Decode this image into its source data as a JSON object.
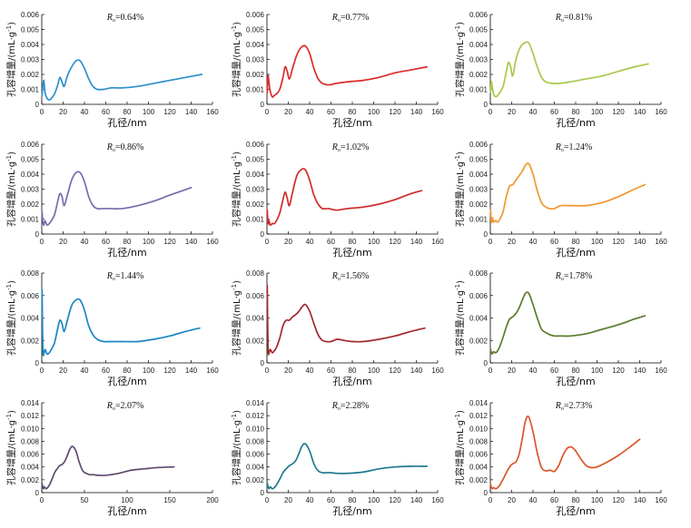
{
  "chart_data": [
    {
      "type": "line",
      "title": "R_o=0.64%",
      "title_prefix": "R",
      "title_sub": "o",
      "title_value": "=0.64%",
      "xlabel": "孔径/nm",
      "ylabel": "孔容增量/(mL·g-1)",
      "xlim": [
        0,
        160
      ],
      "xticks": [
        0,
        20,
        40,
        60,
        80,
        100,
        120,
        140,
        160
      ],
      "ylim": [
        0,
        0.006
      ],
      "yticks": [
        "0",
        "0.001",
        "0.002",
        "0.003",
        "0.004",
        "0.005",
        "0.006"
      ],
      "color": "#2e8fcc",
      "x": [
        0.3,
        1,
        2,
        3,
        5,
        7,
        9,
        12,
        15,
        17,
        19,
        21,
        24,
        28,
        32,
        36,
        40,
        44,
        48,
        52,
        58,
        65,
        75,
        90,
        105,
        120,
        135,
        150
      ],
      "y": [
        0.0006,
        0.0012,
        0.0016,
        0.0008,
        0.0004,
        0.0003,
        0.0004,
        0.0007,
        0.0013,
        0.0018,
        0.0015,
        0.0012,
        0.0019,
        0.0025,
        0.0029,
        0.0029,
        0.0024,
        0.0017,
        0.0012,
        0.001,
        0.001,
        0.0011,
        0.0011,
        0.0012,
        0.0014,
        0.0016,
        0.0018,
        0.002
      ]
    },
    {
      "type": "line",
      "title": "R_o=0.77%",
      "title_prefix": "R",
      "title_sub": "o",
      "title_value": "=0.77%",
      "xlabel": "孔径/nm",
      "ylabel": "孔容增量/(mL·g-1)",
      "xlim": [
        0,
        160
      ],
      "xticks": [
        0,
        20,
        40,
        60,
        80,
        100,
        120,
        140,
        160
      ],
      "ylim": [
        0,
        0.006
      ],
      "yticks": [
        "0",
        "0.001",
        "0.002",
        "0.003",
        "0.004",
        "0.005",
        "0.006"
      ],
      "color": "#dc2a2a",
      "x": [
        0.3,
        1,
        2,
        3,
        5,
        7,
        9,
        12,
        15,
        17,
        19,
        21,
        24,
        28,
        32,
        36,
        40,
        44,
        48,
        52,
        58,
        65,
        75,
        90,
        105,
        120,
        135,
        150
      ],
      "y": [
        0.0008,
        0.0019,
        0.0014,
        0.0009,
        0.0005,
        0.0006,
        0.0007,
        0.001,
        0.0018,
        0.0025,
        0.0022,
        0.0017,
        0.0024,
        0.0033,
        0.0038,
        0.0039,
        0.0034,
        0.0024,
        0.0017,
        0.0014,
        0.0013,
        0.0014,
        0.0015,
        0.0016,
        0.0018,
        0.0021,
        0.0023,
        0.0025
      ]
    },
    {
      "type": "line",
      "title": "R_o=0.81%",
      "title_prefix": "R",
      "title_sub": "o",
      "title_value": "=0.81%",
      "xlabel": "孔径/nm",
      "ylabel": "孔容增量/(mL·g-1)",
      "xlim": [
        0,
        160
      ],
      "xticks": [
        0,
        20,
        40,
        60,
        80,
        100,
        120,
        140,
        160
      ],
      "ylim": [
        0,
        0.006
      ],
      "yticks": [
        "0",
        "0.001",
        "0.002",
        "0.003",
        "0.004",
        "0.005",
        "0.006"
      ],
      "color": "#a8c94a",
      "x": [
        0.3,
        1,
        2,
        3,
        5,
        7,
        9,
        12,
        15,
        17,
        19,
        21,
        24,
        28,
        32,
        36,
        40,
        44,
        48,
        52,
        58,
        65,
        75,
        90,
        105,
        120,
        135,
        148
      ],
      "y": [
        0.0008,
        0.0015,
        0.0011,
        0.0007,
        0.0005,
        0.0006,
        0.0008,
        0.0012,
        0.0022,
        0.0028,
        0.0025,
        0.0019,
        0.003,
        0.0038,
        0.0041,
        0.0041,
        0.0034,
        0.0025,
        0.0018,
        0.0015,
        0.0014,
        0.0014,
        0.0015,
        0.0017,
        0.0019,
        0.0022,
        0.0025,
        0.0027
      ]
    },
    {
      "type": "line",
      "title": "R_o=0.86%",
      "title_prefix": "R",
      "title_sub": "o",
      "title_value": "=0.86%",
      "xlabel": "孔径/nm",
      "ylabel": "孔容增量/(mL·g-1)",
      "xlim": [
        0,
        160
      ],
      "xticks": [
        0,
        20,
        40,
        60,
        80,
        100,
        120,
        140,
        160
      ],
      "ylim": [
        0,
        0.006
      ],
      "yticks": [
        "0",
        "0.001",
        "0.002",
        "0.003",
        "0.004",
        "0.005",
        "0.006"
      ],
      "color": "#7a6aab",
      "x": [
        0.3,
        1,
        2,
        3,
        5,
        7,
        9,
        12,
        15,
        17,
        19,
        21,
        24,
        28,
        32,
        36,
        40,
        44,
        48,
        52,
        58,
        65,
        75,
        90,
        105,
        120,
        140
      ],
      "y": [
        0.0015,
        0.0008,
        0.0006,
        0.0009,
        0.0006,
        0.0007,
        0.0009,
        0.0013,
        0.0022,
        0.0027,
        0.0025,
        0.0019,
        0.0026,
        0.0036,
        0.0041,
        0.0041,
        0.0035,
        0.0025,
        0.0019,
        0.0017,
        0.0017,
        0.0017,
        0.0017,
        0.0019,
        0.0022,
        0.0026,
        0.0031
      ]
    },
    {
      "type": "line",
      "title": "R_o=1.02%",
      "title_prefix": "R",
      "title_sub": "o",
      "title_value": "=1.02%",
      "xlabel": "孔径/nm",
      "ylabel": "孔容增量/(mL·g-1)",
      "xlim": [
        0,
        160
      ],
      "xticks": [
        0,
        20,
        40,
        60,
        80,
        100,
        120,
        140,
        160
      ],
      "ylim": [
        0,
        0.006
      ],
      "yticks": [
        "0",
        "0.001",
        "0.002",
        "0.003",
        "0.004",
        "0.005",
        "0.006"
      ],
      "color": "#cf2b2b",
      "x": [
        0.3,
        1,
        2,
        3,
        5,
        7,
        9,
        12,
        15,
        17,
        19,
        21,
        24,
        28,
        32,
        36,
        40,
        44,
        48,
        52,
        58,
        65,
        75,
        90,
        105,
        120,
        135,
        145
      ],
      "y": [
        0.0016,
        0.0007,
        0.0009,
        0.0006,
        0.0007,
        0.0007,
        0.0009,
        0.0014,
        0.0023,
        0.0028,
        0.0024,
        0.0019,
        0.0028,
        0.0039,
        0.0043,
        0.0043,
        0.0036,
        0.0026,
        0.002,
        0.0017,
        0.0017,
        0.0016,
        0.0017,
        0.0018,
        0.002,
        0.0023,
        0.0027,
        0.0029
      ]
    },
    {
      "type": "line",
      "title": "R_o=1.24%",
      "title_prefix": "R",
      "title_sub": "o",
      "title_value": "=1.24%",
      "xlabel": "孔径/nm",
      "ylabel": "孔容增量/(mL·g-1)",
      "xlim": [
        0,
        160
      ],
      "xticks": [
        0,
        20,
        40,
        60,
        80,
        100,
        120,
        140,
        160
      ],
      "ylim": [
        0,
        0.006
      ],
      "yticks": [
        "0",
        "0.001",
        "0.002",
        "0.003",
        "0.004",
        "0.005",
        "0.006"
      ],
      "color": "#f1982f",
      "x": [
        0.3,
        1,
        2,
        3,
        5,
        7,
        9,
        12,
        15,
        18,
        21,
        24,
        27,
        30,
        33,
        36,
        40,
        44,
        48,
        52,
        56,
        60,
        66,
        75,
        90,
        105,
        120,
        135,
        145
      ],
      "y": [
        0.0016,
        0.0008,
        0.0011,
        0.0008,
        0.0009,
        0.0008,
        0.001,
        0.0015,
        0.0025,
        0.0032,
        0.0033,
        0.0036,
        0.0039,
        0.0042,
        0.0046,
        0.0047,
        0.004,
        0.0029,
        0.0021,
        0.0018,
        0.0017,
        0.0017,
        0.0019,
        0.0019,
        0.0019,
        0.0021,
        0.0025,
        0.003,
        0.0033
      ]
    },
    {
      "type": "line",
      "title": "R_o=1.44%",
      "title_prefix": "R",
      "title_sub": "o",
      "title_value": "=1.44%",
      "xlabel": "孔径/nm",
      "ylabel": "孔容增量/(mL·g-1)",
      "xlim": [
        0,
        160
      ],
      "xticks": [
        0,
        20,
        40,
        60,
        80,
        100,
        120,
        140,
        160
      ],
      "ylim": [
        0,
        0.008
      ],
      "yticks": [
        "0",
        "0.002",
        "0.004",
        "0.006",
        "0.008"
      ],
      "color": "#1b86c5",
      "x": [
        0.3,
        1,
        2,
        3,
        5,
        7,
        9,
        12,
        15,
        17,
        19,
        21,
        24,
        28,
        32,
        36,
        40,
        44,
        48,
        52,
        58,
        65,
        75,
        90,
        105,
        120,
        135,
        148
      ],
      "y": [
        0.0065,
        0.0012,
        0.0008,
        0.0012,
        0.0008,
        0.0009,
        0.0012,
        0.0018,
        0.0031,
        0.0038,
        0.0035,
        0.0028,
        0.0038,
        0.0051,
        0.0056,
        0.0056,
        0.0047,
        0.0033,
        0.0025,
        0.0021,
        0.0019,
        0.0019,
        0.0019,
        0.0019,
        0.0021,
        0.0024,
        0.0028,
        0.0031
      ]
    },
    {
      "type": "line",
      "title": "R_o=1.56%",
      "title_prefix": "R",
      "title_sub": "o",
      "title_value": "=1.56%",
      "xlabel": "孔径/nm",
      "ylabel": "孔容增量/(mL·g-1)",
      "xlim": [
        0,
        160
      ],
      "xticks": [
        0,
        20,
        40,
        60,
        80,
        100,
        120,
        140,
        160
      ],
      "ylim": [
        0,
        0.008
      ],
      "yticks": [
        "0",
        "0.002",
        "0.004",
        "0.006",
        "0.008"
      ],
      "color": "#a12a2e",
      "x": [
        0.3,
        1,
        2,
        3,
        5,
        7,
        9,
        12,
        15,
        18,
        21,
        24,
        27,
        30,
        33,
        36,
        40,
        44,
        48,
        52,
        56,
        60,
        66,
        72,
        80,
        90,
        105,
        120,
        135,
        148
      ],
      "y": [
        0.0069,
        0.0013,
        0.0009,
        0.0012,
        0.0009,
        0.0011,
        0.0014,
        0.0022,
        0.0033,
        0.0038,
        0.0038,
        0.0041,
        0.0043,
        0.0046,
        0.005,
        0.0052,
        0.0046,
        0.0035,
        0.0025,
        0.002,
        0.0019,
        0.0019,
        0.0021,
        0.002,
        0.0019,
        0.0019,
        0.0021,
        0.0024,
        0.0028,
        0.0031
      ]
    },
    {
      "type": "line",
      "title": "R_o=1.78%",
      "title_prefix": "R",
      "title_sub": "o",
      "title_value": "=1.78%",
      "xlabel": "孔径/nm",
      "ylabel": "孔容增量/(mL·g-1)",
      "xlim": [
        0,
        160
      ],
      "xticks": [
        0,
        20,
        40,
        60,
        80,
        100,
        120,
        140,
        160
      ],
      "ylim": [
        0,
        0.008
      ],
      "yticks": [
        "0",
        "0.002",
        "0.004",
        "0.006",
        "0.008"
      ],
      "color": "#5a7a2e",
      "x": [
        0.3,
        1,
        2,
        3,
        5,
        7,
        9,
        12,
        15,
        18,
        21,
        24,
        27,
        30,
        33,
        36,
        40,
        44,
        48,
        52,
        56,
        60,
        66,
        75,
        90,
        105,
        120,
        135,
        145
      ],
      "y": [
        0.0012,
        0.0009,
        0.0008,
        0.001,
        0.0009,
        0.0011,
        0.0015,
        0.0023,
        0.0032,
        0.0039,
        0.0041,
        0.0044,
        0.0049,
        0.0056,
        0.0062,
        0.0062,
        0.0052,
        0.004,
        0.003,
        0.0027,
        0.0025,
        0.0024,
        0.0024,
        0.0024,
        0.0026,
        0.003,
        0.0034,
        0.0039,
        0.0042
      ]
    },
    {
      "type": "line",
      "title": "R_o=2.07%",
      "title_prefix": "R",
      "title_sub": "o",
      "title_value": "=2.07%",
      "xlabel": "孔径/nm",
      "ylabel": "孔容增量/(mL·g-1)",
      "xlim": [
        0,
        200
      ],
      "xticks": [
        0,
        50,
        100,
        150,
        200
      ],
      "ylim": [
        0,
        0.014
      ],
      "yticks": [
        "0",
        "0.002",
        "0.004",
        "0.006",
        "0.008",
        "0.010",
        "0.012",
        "0.014"
      ],
      "color": "#5d4a6e",
      "x": [
        0.3,
        1,
        2,
        3,
        5,
        7,
        9,
        12,
        15,
        18,
        21,
        24,
        27,
        30,
        33,
        36,
        40,
        44,
        48,
        52,
        56,
        60,
        66,
        75,
        90,
        105,
        120,
        135,
        155
      ],
      "y": [
        0.0015,
        0.0009,
        0.0006,
        0.0009,
        0.0006,
        0.0008,
        0.0012,
        0.0021,
        0.0031,
        0.0037,
        0.0042,
        0.0044,
        0.0049,
        0.0058,
        0.0068,
        0.0072,
        0.0065,
        0.0047,
        0.0034,
        0.003,
        0.0028,
        0.0028,
        0.0027,
        0.0027,
        0.003,
        0.0035,
        0.0037,
        0.0039,
        0.004
      ]
    },
    {
      "type": "line",
      "title": "R_o=2.28%",
      "title_prefix": "R",
      "title_sub": "o",
      "title_value": "=2.28%",
      "xlabel": "孔径/nm",
      "ylabel": "孔容增量/(mL·g-1)",
      "xlim": [
        0,
        160
      ],
      "xticks": [
        0,
        20,
        40,
        60,
        80,
        100,
        120,
        140,
        160
      ],
      "ylim": [
        0,
        0.014
      ],
      "yticks": [
        "0",
        "0.002",
        "0.004",
        "0.006",
        "0.008",
        "0.010",
        "0.012",
        "0.014"
      ],
      "color": "#1f7a8e",
      "x": [
        0.3,
        1,
        2,
        3,
        5,
        7,
        9,
        12,
        15,
        18,
        21,
        24,
        27,
        30,
        33,
        36,
        40,
        44,
        48,
        52,
        56,
        60,
        66,
        75,
        90,
        105,
        120,
        135,
        150
      ],
      "y": [
        0.0015,
        0.0009,
        0.0006,
        0.0009,
        0.0006,
        0.0008,
        0.0012,
        0.0021,
        0.0031,
        0.0037,
        0.0042,
        0.0045,
        0.005,
        0.0061,
        0.0073,
        0.0076,
        0.0065,
        0.0045,
        0.0034,
        0.0031,
        0.0031,
        0.0031,
        0.003,
        0.003,
        0.0032,
        0.0037,
        0.004,
        0.0041,
        0.0041
      ]
    },
    {
      "type": "line",
      "title": "R_o=2.73%",
      "title_prefix": "R",
      "title_sub": "o",
      "title_value": "=2.73%",
      "xlabel": "孔径/nm",
      "ylabel": "孔容增量/(mL·g-1)",
      "xlim": [
        0,
        160
      ],
      "xticks": [
        0,
        20,
        40,
        60,
        80,
        100,
        120,
        140,
        160
      ],
      "ylim": [
        0,
        0.014
      ],
      "yticks": [
        "0",
        "0.002",
        "0.004",
        "0.006",
        "0.008",
        "0.010",
        "0.012",
        "0.014"
      ],
      "color": "#d9562a",
      "x": [
        0.3,
        1,
        2,
        3,
        5,
        7,
        9,
        12,
        15,
        18,
        21,
        24,
        27,
        30,
        33,
        36,
        40,
        44,
        48,
        52,
        56,
        60,
        64,
        68,
        72,
        76,
        80,
        85,
        90,
        95,
        100,
        110,
        120,
        130,
        140
      ],
      "y": [
        0.0013,
        0.0008,
        0.0006,
        0.0008,
        0.0006,
        0.0008,
        0.0012,
        0.0021,
        0.0031,
        0.004,
        0.0045,
        0.0048,
        0.006,
        0.0085,
        0.0112,
        0.0118,
        0.0095,
        0.0062,
        0.0039,
        0.0034,
        0.0035,
        0.0033,
        0.0042,
        0.0058,
        0.0069,
        0.0071,
        0.0065,
        0.0052,
        0.0042,
        0.0039,
        0.004,
        0.0048,
        0.0058,
        0.007,
        0.0083
      ]
    }
  ]
}
